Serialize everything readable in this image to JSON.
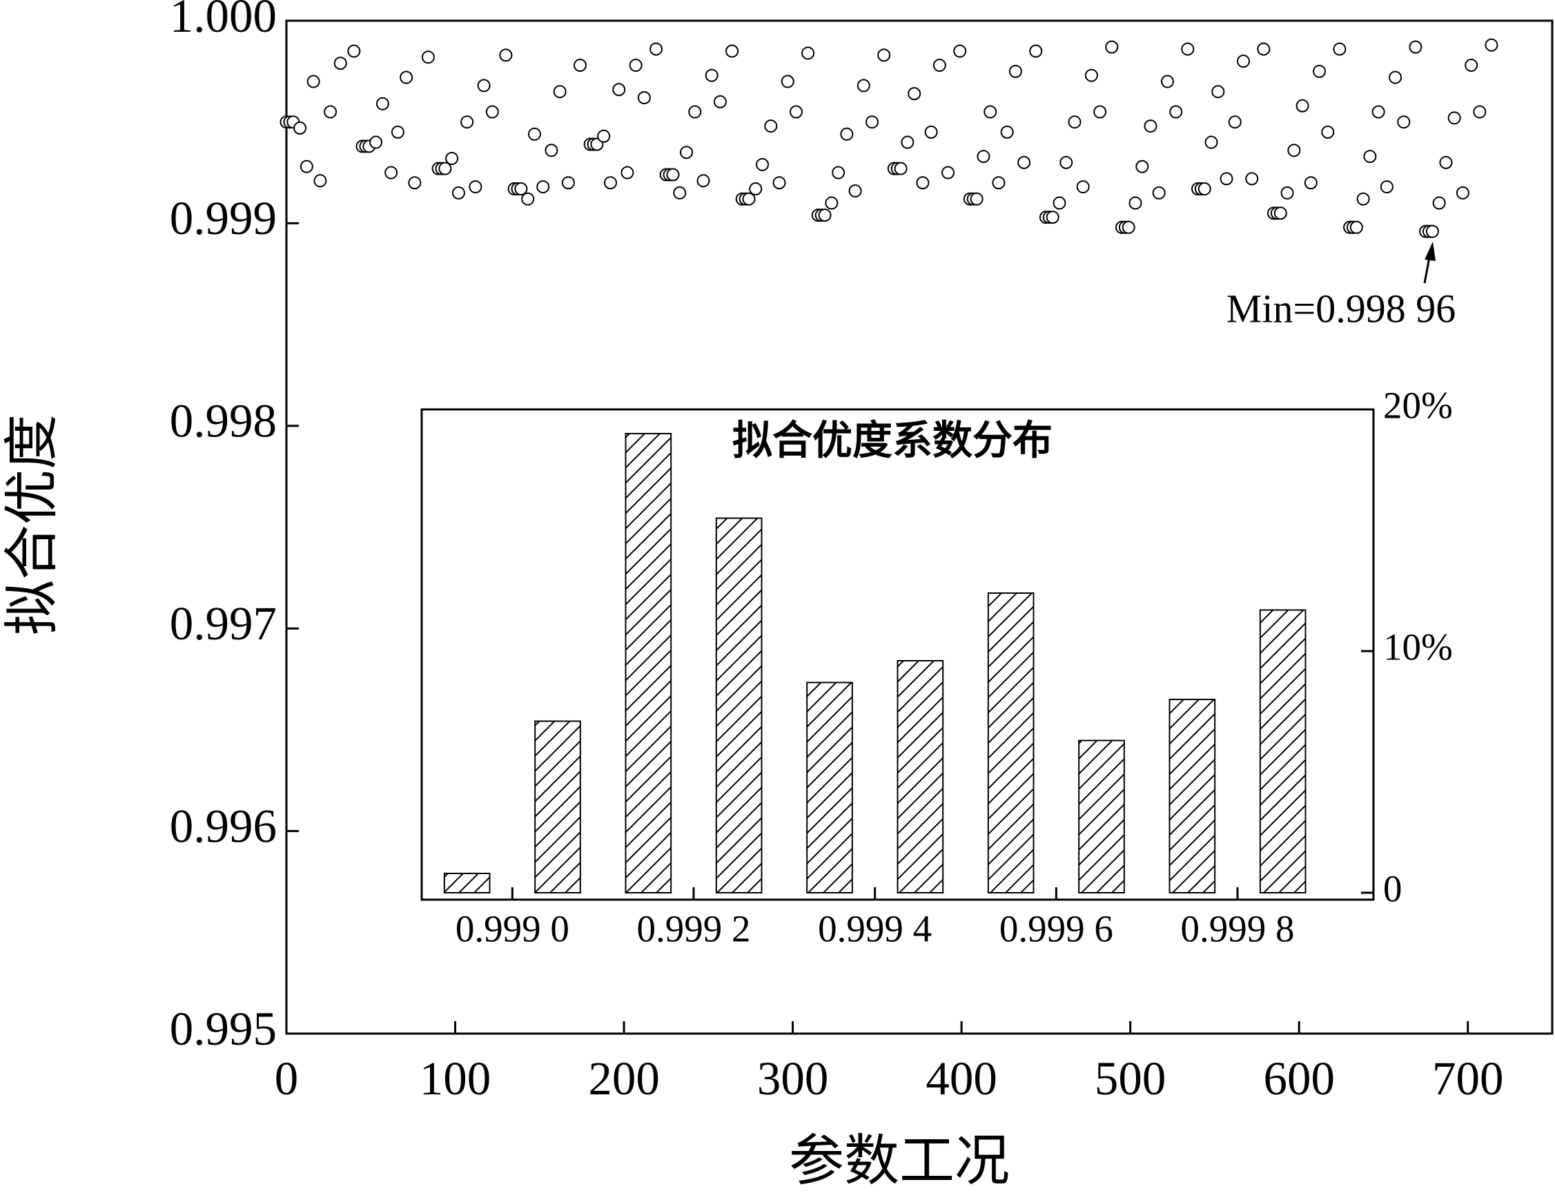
{
  "chart_data": [
    {
      "type": "scatter",
      "xlabel": "参数工况",
      "ylabel": "拟合优度",
      "annotation": "Min=0.998 96",
      "marker": "open-circle",
      "color": "#000000",
      "xlim": [
        0,
        750
      ],
      "ylim": [
        0.995,
        1.0
      ],
      "xticks": [
        0,
        100,
        200,
        300,
        400,
        500,
        600,
        700
      ],
      "yticks": [
        0.995,
        0.996,
        0.997,
        0.998,
        0.999,
        {
          "value": 1.0,
          "label": "1.000"
        }
      ],
      "x": [
        0,
        2,
        4,
        8,
        12,
        16,
        20,
        26,
        32,
        40,
        45,
        47,
        49,
        53,
        57,
        62,
        66,
        71,
        76,
        84,
        90,
        92,
        94,
        98,
        102,
        107,
        112,
        117,
        122,
        130,
        135,
        137,
        139,
        143,
        147,
        152,
        157,
        162,
        167,
        174,
        180,
        182,
        184,
        188,
        192,
        197,
        202,
        207,
        212,
        219,
        225,
        227,
        229,
        233,
        237,
        242,
        247,
        252,
        257,
        264,
        270,
        272,
        274,
        278,
        282,
        287,
        292,
        297,
        302,
        309,
        315,
        317,
        319,
        323,
        327,
        332,
        337,
        342,
        347,
        354,
        360,
        362,
        364,
        368,
        372,
        377,
        382,
        387,
        392,
        399,
        405,
        407,
        409,
        413,
        417,
        422,
        427,
        432,
        437,
        444,
        450,
        452,
        454,
        458,
        462,
        467,
        472,
        477,
        482,
        489,
        495,
        497,
        499,
        503,
        507,
        512,
        517,
        522,
        527,
        534,
        540,
        542,
        544,
        548,
        552,
        557,
        562,
        567,
        572,
        579,
        585,
        587,
        589,
        593,
        597,
        602,
        607,
        612,
        617,
        624,
        630,
        632,
        634,
        638,
        642,
        647,
        652,
        657,
        662,
        669,
        675,
        677,
        679,
        683,
        687,
        692,
        697,
        702,
        707,
        714
      ],
      "y": [
        0.9995,
        0.9995,
        0.9995,
        0.99947,
        0.99928,
        0.9997,
        0.99921,
        0.99955,
        0.99979,
        0.99985,
        0.99938,
        0.99938,
        0.99938,
        0.9994,
        0.99959,
        0.99925,
        0.99945,
        0.99972,
        0.9992,
        0.99982,
        0.99927,
        0.99927,
        0.99927,
        0.99932,
        0.99915,
        0.9995,
        0.99918,
        0.99968,
        0.99955,
        0.99983,
        0.99917,
        0.99917,
        0.99917,
        0.99912,
        0.99944,
        0.99918,
        0.99936,
        0.99965,
        0.9992,
        0.99978,
        0.99939,
        0.99939,
        0.99939,
        0.99943,
        0.9992,
        0.99966,
        0.99925,
        0.99978,
        0.99962,
        0.99986,
        0.99924,
        0.99924,
        0.99924,
        0.99915,
        0.99935,
        0.99955,
        0.99921,
        0.99973,
        0.9996,
        0.99985,
        0.99912,
        0.99912,
        0.99912,
        0.99917,
        0.99929,
        0.99948,
        0.9992,
        0.9997,
        0.99955,
        0.99984,
        0.99904,
        0.99904,
        0.99904,
        0.9991,
        0.99925,
        0.99944,
        0.99916,
        0.99968,
        0.9995,
        0.99983,
        0.99927,
        0.99927,
        0.99927,
        0.9994,
        0.99964,
        0.9992,
        0.99945,
        0.99978,
        0.99925,
        0.99985,
        0.99912,
        0.99912,
        0.99912,
        0.99933,
        0.99955,
        0.9992,
        0.99945,
        0.99975,
        0.9993,
        0.99985,
        0.99903,
        0.99903,
        0.99903,
        0.9991,
        0.9993,
        0.9995,
        0.99918,
        0.99973,
        0.99955,
        0.99987,
        0.99898,
        0.99898,
        0.99898,
        0.9991,
        0.99928,
        0.99948,
        0.99915,
        0.9997,
        0.99955,
        0.99986,
        0.99917,
        0.99917,
        0.99917,
        0.9994,
        0.99965,
        0.99922,
        0.9995,
        0.9998,
        0.99922,
        0.99986,
        0.99905,
        0.99905,
        0.99905,
        0.99915,
        0.99936,
        0.99958,
        0.9992,
        0.99975,
        0.99945,
        0.99986,
        0.99898,
        0.99898,
        0.99898,
        0.99912,
        0.99933,
        0.99955,
        0.99918,
        0.99972,
        0.9995,
        0.99987,
        0.99896,
        0.99896,
        0.99896,
        0.9991,
        0.9993,
        0.99952,
        0.99915,
        0.99978,
        0.99955,
        0.99988
      ]
    },
    {
      "type": "histogram",
      "title": "拟合优度系数分布",
      "y_axis_side": "right",
      "color": "#000000",
      "hatch": "diagonal",
      "bins": [
        0.9989,
        0.999,
        0.9991,
        0.9992,
        0.9993,
        0.9994,
        0.9995,
        0.9996,
        0.9997,
        0.9998,
        0.9999
      ],
      "values": [
        0.8,
        7.1,
        19.0,
        15.5,
        8.7,
        9.6,
        12.4,
        6.3,
        8.0,
        11.7
      ],
      "xlim": [
        0.9989,
        0.99995
      ],
      "ylim": [
        0,
        20
      ],
      "xticks": [
        {
          "value": 0.999,
          "label": "0.999 0"
        },
        {
          "value": 0.9992,
          "label": "0.999 2"
        },
        {
          "value": 0.9994,
          "label": "0.999 4"
        },
        {
          "value": 0.9996,
          "label": "0.999 6"
        },
        {
          "value": 0.9998,
          "label": "0.999 8"
        }
      ],
      "yticks": [
        0,
        {
          "value": 10,
          "label": "10%"
        },
        {
          "value": 20,
          "label": "20%"
        }
      ]
    }
  ]
}
